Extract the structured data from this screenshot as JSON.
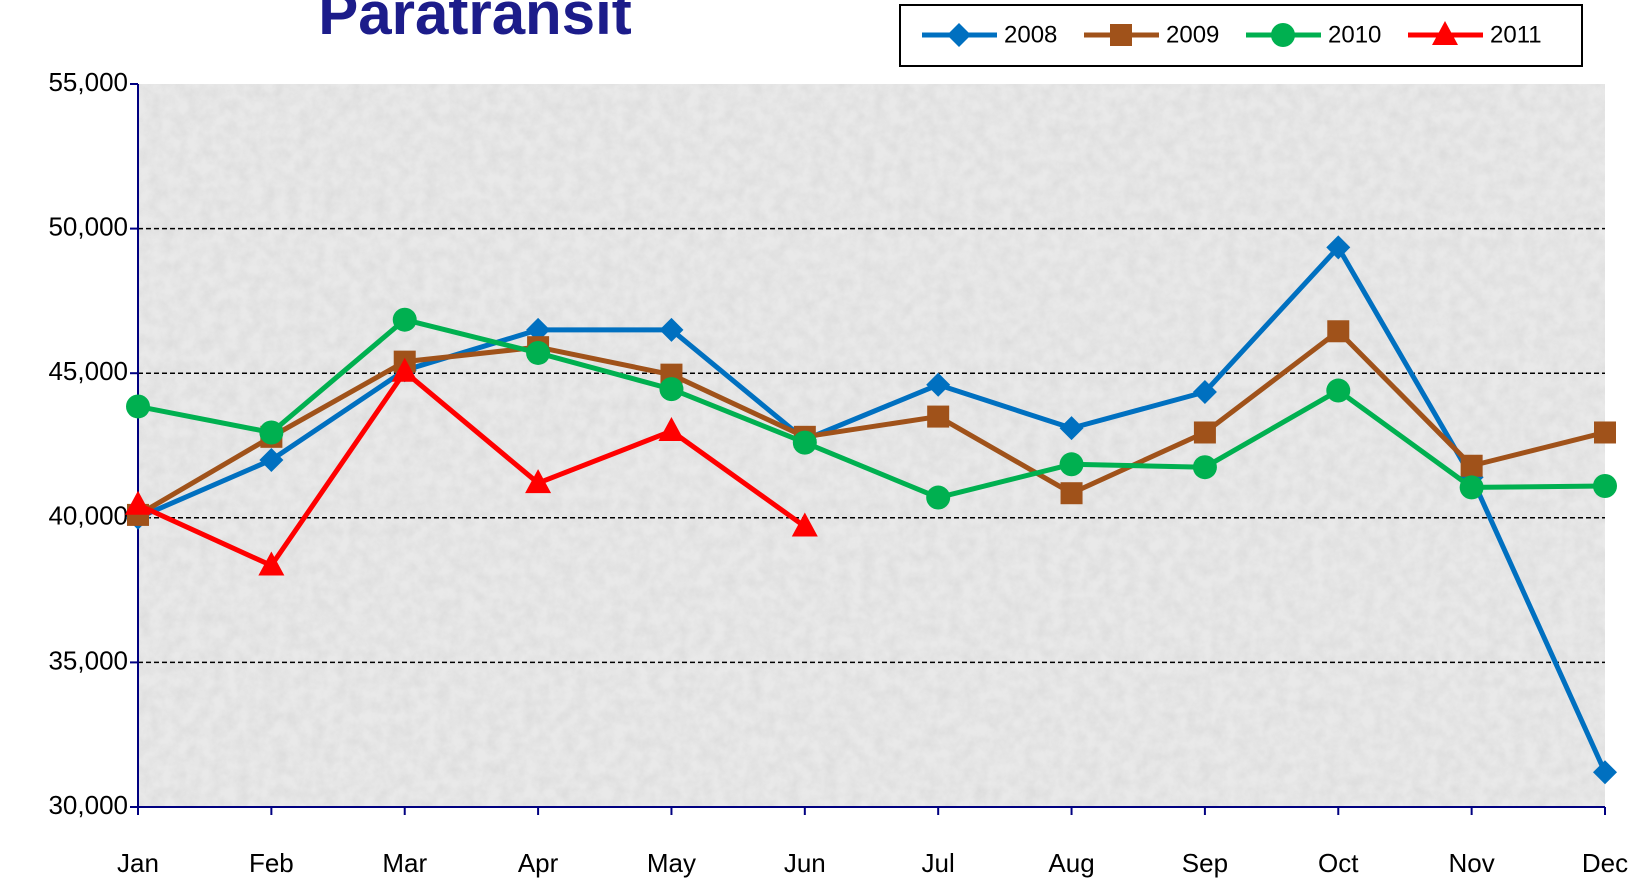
{
  "chart_data": {
    "type": "line",
    "title": "Paratransit",
    "categories": [
      "Jan",
      "Feb",
      "Mar",
      "Apr",
      "May",
      "Jun",
      "Jul",
      "Aug",
      "Sep",
      "Oct",
      "Nov",
      "Dec"
    ],
    "series": [
      {
        "name": "2008",
        "color": "#0070c0",
        "marker": "diamond",
        "values": [
          40000,
          42000,
          45100,
          46500,
          46500,
          42700,
          44600,
          43100,
          44350,
          49350,
          41400,
          31200
        ]
      },
      {
        "name": "2009",
        "color": "#a0521a",
        "marker": "square",
        "values": [
          40100,
          42800,
          45400,
          45900,
          44950,
          42800,
          43500,
          40850,
          42950,
          46450,
          41800,
          42950
        ]
      },
      {
        "name": "2010",
        "color": "#00b050",
        "marker": "circle",
        "values": [
          43850,
          42950,
          46850,
          45700,
          44450,
          42600,
          40700,
          41850,
          41750,
          44400,
          41050,
          41100
        ]
      },
      {
        "name": "2011",
        "color": "#ff0000",
        "marker": "triangle",
        "values": [
          40450,
          38350,
          45050,
          41200,
          43000,
          39700,
          null,
          null,
          null,
          null,
          null,
          null
        ]
      }
    ],
    "ylim": [
      30000,
      55000
    ],
    "yticks": [
      {
        "value": 30000,
        "label": "30,000"
      },
      {
        "value": 35000,
        "label": "35,000"
      },
      {
        "value": 40000,
        "label": "40,000"
      },
      {
        "value": 45000,
        "label": "45,000"
      },
      {
        "value": 50000,
        "label": "50,000"
      },
      {
        "value": 55000,
        "label": "55,000"
      }
    ],
    "grid": true,
    "legend": "top-right"
  }
}
